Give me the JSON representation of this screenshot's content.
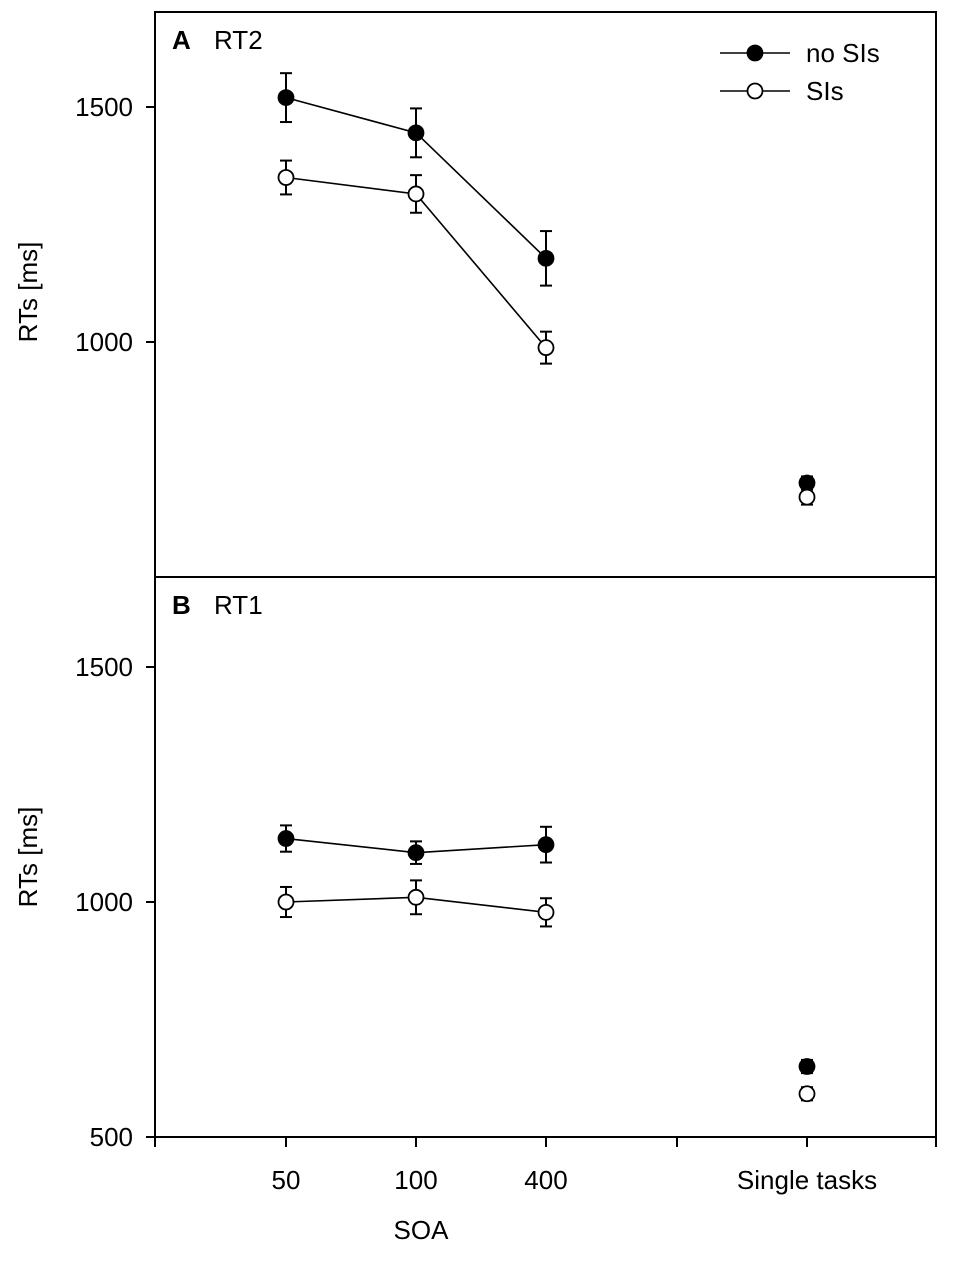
{
  "chart_data": [
    {
      "type": "line",
      "panel_letter": "A",
      "title": "RT2",
      "ylabel": "RTs [ms]",
      "ylim": [
        500,
        1700
      ],
      "yticks": [
        1000,
        1500
      ],
      "ytick_labels": [
        "1000",
        "1500"
      ],
      "categories": [
        "50",
        "100",
        "400",
        "Single tasks"
      ],
      "legend": "top-right",
      "series": [
        {
          "name": "no SIs",
          "marker": "filled-circle",
          "color": "#000000",
          "values": [
            1520,
            1445,
            1178,
            700
          ],
          "errors": [
            52,
            52,
            58,
            14
          ]
        },
        {
          "name": "SIs",
          "marker": "open-circle",
          "color": "#000000",
          "values": [
            1350,
            1315,
            988,
            670
          ],
          "errors": [
            36,
            40,
            34,
            16
          ]
        }
      ]
    },
    {
      "type": "line",
      "panel_letter": "B",
      "title": "RT1",
      "ylabel": "RTs [ms]",
      "xlabel": "SOA",
      "ylim": [
        500,
        1700
      ],
      "yticks": [
        500,
        1000,
        1500
      ],
      "ytick_labels": [
        "500",
        "1000",
        "1500"
      ],
      "categories": [
        "50",
        "100",
        "400",
        "Single tasks"
      ],
      "series": [
        {
          "name": "no SIs",
          "marker": "filled-circle",
          "color": "#000000",
          "values": [
            1135,
            1105,
            1122,
            650
          ],
          "errors": [
            28,
            24,
            38,
            14
          ]
        },
        {
          "name": "SIs",
          "marker": "open-circle",
          "color": "#000000",
          "values": [
            1000,
            1010,
            978,
            592
          ],
          "errors": [
            32,
            36,
            30,
            14
          ]
        }
      ]
    }
  ]
}
